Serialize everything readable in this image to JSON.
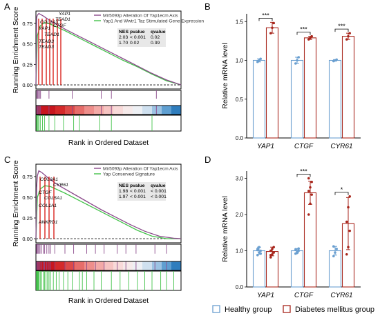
{
  "panel_letters": [
    "A",
    "B",
    "C",
    "D"
  ],
  "legend": {
    "healthy_label": "Healthy group",
    "dm_label": "Diabetes mellitus group",
    "colors": {
      "healthy": "#6a9fd0",
      "dm": "#a8261c"
    }
  },
  "chart_data": [
    {
      "type": "line",
      "panel": "A",
      "ylabel": "Running Enrichment Score",
      "xlabel": "Rank in Ordered Dataset",
      "ylim": [
        -0.05,
        0.9
      ],
      "yticks": [
        "0.75",
        "0.50",
        "0.25",
        "0.00"
      ],
      "series": [
        {
          "name": "Mir5093p Alteration Of Yap1ecm Axis",
          "color": "#8b4a8b"
        },
        {
          "name": "Yap1 And Wwtr1 Taz Stimulated Gene Expression",
          "color": "#43c24a"
        }
      ],
      "stats_table": {
        "headers": [
          "NES",
          "pvalue",
          "qvalue"
        ],
        "rows": [
          [
            "2.03",
            "< 0.001",
            "0.02"
          ],
          [
            "1.70",
            "0.02",
            "0.39"
          ]
        ]
      },
      "gene_labels": [
        "YAP1",
        "TEAD1",
        "CTGF",
        "COL1A1",
        "YAP1",
        "TEAD1",
        "TEAD3",
        "TEAD3"
      ],
      "curves": {
        "purple": {
          "x": [
            0,
            0.005,
            0.01,
            0.02,
            0.05,
            0.1,
            0.2,
            0.3,
            0.4,
            0.5,
            0.6,
            0.7,
            0.8,
            0.9,
            0.95,
            1.0
          ],
          "y": [
            0,
            0.82,
            0.85,
            0.87,
            0.84,
            0.78,
            0.68,
            0.59,
            0.5,
            0.41,
            0.32,
            0.23,
            0.14,
            0.06,
            0.03,
            0.0
          ]
        },
        "green": {
          "x": [
            0,
            0.01,
            0.03,
            0.06,
            0.1,
            0.2,
            0.3,
            0.4,
            0.5,
            0.6,
            0.7,
            0.8,
            0.9,
            1.0
          ],
          "y": [
            0,
            0.6,
            0.72,
            0.76,
            0.74,
            0.66,
            0.57,
            0.48,
            0.39,
            0.3,
            0.22,
            0.13,
            0.05,
            0.0
          ]
        }
      },
      "hits": {
        "purple": [
          0.005,
          0.012,
          0.018,
          0.025,
          0.032,
          0.09,
          0.25,
          0.45,
          0.52,
          0.83
        ],
        "green": [
          0.004,
          0.008,
          0.014,
          0.02,
          0.03,
          0.045,
          0.06,
          0.09,
          0.13,
          0.19,
          0.26,
          0.3,
          0.44,
          0.52,
          0.8
        ]
      }
    },
    {
      "type": "bar",
      "panel": "B",
      "ylabel": "Relative mRNA level",
      "categories": [
        "YAP1",
        "CTGF",
        "CYR61"
      ],
      "ylim": [
        0,
        1.6
      ],
      "yticks": [
        0.0,
        0.5,
        1.0,
        1.5
      ],
      "series": [
        {
          "name": "Healthy group",
          "values": [
            1.0,
            1.0,
            1.0
          ],
          "errors": [
            0.02,
            0.04,
            0.01
          ],
          "points": [
            [
              0.98,
              1.0,
              1.02
            ],
            [
              0.96,
              1.0,
              1.04
            ],
            [
              0.99,
              1.0,
              1.01
            ]
          ]
        },
        {
          "name": "Diabetes mellitus group",
          "values": [
            1.42,
            1.29,
            1.31
          ],
          "errors": [
            0.07,
            0.02,
            0.04
          ],
          "points": [
            [
              1.35,
              1.42,
              1.48
            ],
            [
              1.27,
              1.29,
              1.31
            ],
            [
              1.27,
              1.31,
              1.35
            ]
          ]
        }
      ],
      "significance": [
        "***",
        "***",
        "***"
      ]
    },
    {
      "type": "line",
      "panel": "C",
      "ylabel": "Running Enrichment Score",
      "xlabel": "Rank in Ordered Dataset",
      "ylim": [
        -0.05,
        0.9
      ],
      "yticks": [
        "0.75",
        "0.50",
        "0.25",
        "0.00"
      ],
      "series": [
        {
          "name": "Mir5093p Alteration Of Yap1ecm Axis",
          "color": "#8b4a8b"
        },
        {
          "name": "Yap Conserved Signature",
          "color": "#43c24a"
        }
      ],
      "stats_table": {
        "headers": [
          "NES",
          "pvalue",
          "qvalue"
        ],
        "rows": [
          [
            "1.98",
            "< 0.001",
            "< 0.001"
          ],
          [
            "1.97",
            "< 0.001",
            "< 0.001"
          ]
        ]
      },
      "gene_labels": [
        "COL3A1",
        "CYR61",
        "CTGF",
        "COL5A1",
        "COL1A1",
        "ANKRD1"
      ],
      "curves": {
        "purple": {
          "x": [
            0,
            0.005,
            0.01,
            0.02,
            0.04,
            0.08,
            0.15,
            0.25,
            0.35,
            0.45,
            0.55,
            0.65,
            0.75,
            0.85,
            0.95,
            1.0
          ],
          "y": [
            0,
            0.62,
            0.76,
            0.82,
            0.8,
            0.74,
            0.65,
            0.55,
            0.45,
            0.35,
            0.26,
            0.17,
            0.09,
            0.03,
            0.005,
            0.0
          ]
        },
        "green": {
          "x": [
            0,
            0.01,
            0.03,
            0.06,
            0.1,
            0.2,
            0.3,
            0.4,
            0.5,
            0.6,
            0.7,
            0.8,
            0.9,
            1.0
          ],
          "y": [
            0,
            0.5,
            0.6,
            0.64,
            0.63,
            0.55,
            0.46,
            0.37,
            0.28,
            0.19,
            0.1,
            0.03,
            0.0,
            0.0
          ]
        }
      },
      "hits": {
        "purple": [
          0.004,
          0.008,
          0.014,
          0.02,
          0.028,
          0.038,
          0.05,
          0.06,
          0.075,
          0.09,
          0.1,
          0.13,
          0.2,
          0.26,
          0.35,
          0.41,
          0.47,
          0.56,
          0.62,
          0.69,
          0.82,
          0.9
        ],
        "green": [
          0.003,
          0.006,
          0.01,
          0.014,
          0.018,
          0.022,
          0.03,
          0.04,
          0.05,
          0.06,
          0.07,
          0.08,
          0.09,
          0.1,
          0.12,
          0.14,
          0.16,
          0.19,
          0.22,
          0.25,
          0.3,
          0.32,
          0.35,
          0.4,
          0.45,
          0.52,
          0.58,
          0.64,
          0.7,
          0.75,
          0.8,
          0.86,
          0.9,
          0.95
        ]
      }
    },
    {
      "type": "bar",
      "panel": "D",
      "ylabel": "Relative mRNA level",
      "categories": [
        "YAP1",
        "CTGF",
        "CYR61"
      ],
      "ylim": [
        0,
        3.2
      ],
      "yticks": [
        0.0,
        1.0,
        2.0,
        3.0
      ],
      "series": [
        {
          "name": "Healthy group",
          "values": [
            1.0,
            1.0,
            1.0
          ],
          "errors": [
            0.1,
            0.06,
            0.12
          ],
          "points": [
            [
              0.88,
              0.95,
              1.0,
              1.05,
              1.1,
              0.92,
              1.02
            ],
            [
              0.92,
              0.97,
              1.0,
              1.04,
              0.94,
              1.06
            ],
            [
              0.85,
              0.95,
              1.05,
              1.12
            ]
          ]
        },
        {
          "name": "Diabetes mellitus group",
          "values": [
            0.98,
            2.6,
            1.75
          ],
          "errors": [
            0.12,
            0.32,
            0.72
          ],
          "points": [
            [
              0.82,
              0.9,
              0.95,
              1.0,
              1.05,
              1.1,
              0.88
            ],
            [
              2.0,
              2.3,
              2.55,
              2.65,
              2.75,
              2.9,
              3.0
            ],
            [
              0.9,
              1.1,
              1.55,
              1.8,
              2.2,
              2.5
            ]
          ]
        }
      ],
      "significance": [
        "",
        "***",
        "*"
      ]
    }
  ]
}
